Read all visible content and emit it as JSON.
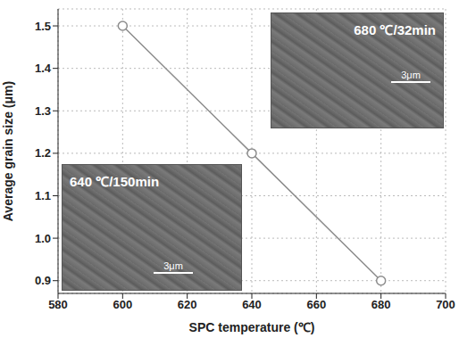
{
  "chart_data": {
    "type": "line",
    "x_label": "SPC temperature (℃)",
    "y_label": "Average grain size (μm)",
    "x": [
      600,
      640,
      680
    ],
    "values": [
      1.5,
      1.2,
      0.9
    ],
    "color": "#8c8c8c",
    "marker": "circle",
    "line_style": "solid",
    "xlim": [
      580,
      700
    ],
    "xticks": [
      580,
      600,
      620,
      640,
      660,
      680,
      700
    ],
    "ylim": [
      0.87,
      1.54
    ],
    "yticks": [
      0.9,
      {
        "value": 1,
        "label": "1.0"
      },
      1.1,
      1.2,
      1.3,
      1.4,
      1.5
    ],
    "grid": true,
    "annotations": [
      {
        "text": "680 ℃/32min",
        "scale_bar": "3μm"
      },
      {
        "text": "640 ℃/150min",
        "scale_bar": "3μm"
      }
    ]
  }
}
